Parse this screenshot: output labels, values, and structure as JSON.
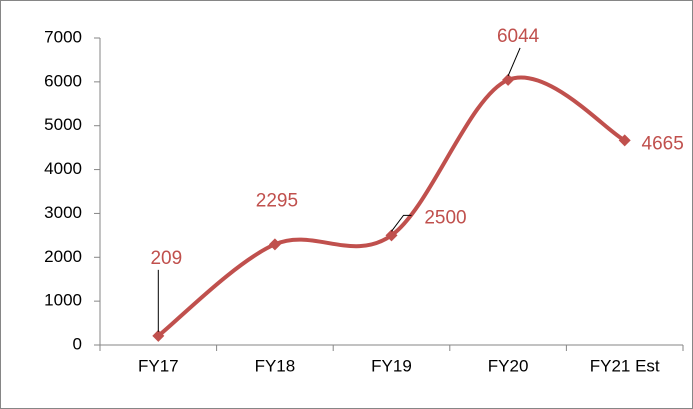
{
  "chart_data": {
    "type": "line",
    "categories": [
      "FY17",
      "FY18",
      "FY19",
      "FY20",
      "FY21 Est"
    ],
    "values": [
      209,
      2295,
      2500,
      6044,
      4665
    ],
    "color": "#c0504d",
    "ylim": [
      0,
      7000
    ],
    "yticks": [
      0,
      1000,
      2000,
      3000,
      4000,
      5000,
      6000,
      7000
    ],
    "grid": false,
    "smooth": true
  }
}
